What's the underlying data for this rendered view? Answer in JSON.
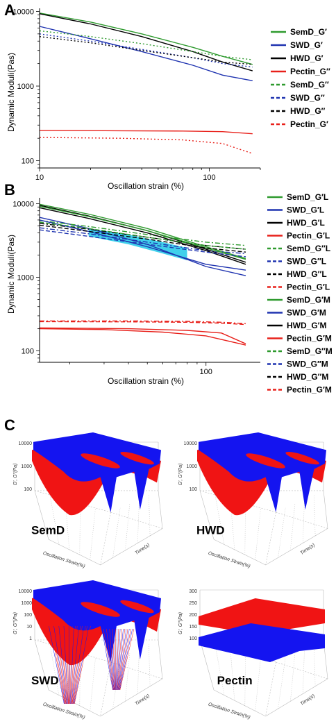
{
  "chart_data": [
    {
      "panel": "A",
      "type": "line",
      "xscale": "log",
      "yscale": "log",
      "xlim": [
        10,
        200
      ],
      "ylim": [
        80,
        11000
      ],
      "xticks": [
        "10",
        "100"
      ],
      "yticks": [
        "100",
        "1000",
        "10000"
      ],
      "xlabel": "Oscillation strain (%)",
      "ylabel": "Dynamic Moduli(Pas)",
      "legend_position": "right",
      "series": [
        {
          "name": "SemD_G′",
          "color": "#2e9a2e",
          "dash": "solid",
          "x": [
            10,
            20,
            40,
            80,
            120,
            180
          ],
          "y": [
            9500,
            7200,
            5000,
            3300,
            2500,
            1950
          ]
        },
        {
          "name": "SWD_G′",
          "color": "#1f33b0",
          "dash": "solid",
          "x": [
            10,
            20,
            40,
            80,
            120,
            180
          ],
          "y": [
            6300,
            4300,
            2900,
            1900,
            1400,
            1180
          ]
        },
        {
          "name": "HWD_G′",
          "color": "#000000",
          "dash": "solid",
          "x": [
            10,
            20,
            40,
            80,
            120,
            180
          ],
          "y": [
            9300,
            6800,
            4600,
            2900,
            2100,
            1600
          ]
        },
        {
          "name": "Pectin_G″",
          "color": "#e8201a",
          "dash": "solid",
          "x": [
            10,
            30,
            70,
            120,
            180
          ],
          "y": [
            255,
            252,
            250,
            245,
            230
          ]
        },
        {
          "name": "SemD_G″",
          "color": "#2e9a2e",
          "dash": "dot",
          "x": [
            10,
            20,
            40,
            80,
            120,
            180
          ],
          "y": [
            5500,
            4600,
            3700,
            2900,
            2500,
            2250
          ]
        },
        {
          "name": "SWD_G″",
          "color": "#1f33b0",
          "dash": "dot",
          "x": [
            10,
            20,
            40,
            80,
            120,
            180
          ],
          "y": [
            5000,
            4000,
            3100,
            2400,
            2000,
            1800
          ]
        },
        {
          "name": "HWD_G″",
          "color": "#000000",
          "dash": "dot",
          "x": [
            10,
            20,
            40,
            80,
            120,
            180
          ],
          "y": [
            4600,
            3800,
            3000,
            2400,
            2100,
            1950
          ]
        },
        {
          "name": "Pectin_G′",
          "color": "#e8201a",
          "dash": "dot",
          "x": [
            10,
            30,
            70,
            120,
            180
          ],
          "y": [
            205,
            200,
            190,
            170,
            125
          ]
        }
      ]
    },
    {
      "panel": "B",
      "type": "line",
      "xscale": "log",
      "yscale": "log",
      "xlim": [
        14,
        190
      ],
      "ylim": [
        70,
        12000
      ],
      "xticks": [
        "100"
      ],
      "yticks": [
        "100",
        "1000",
        "10000"
      ],
      "xlabel": "Oscillation strain (%)",
      "ylabel": "Dynamic Moduli(Pas)",
      "legend_position": "right",
      "shaded_band": {
        "color": "#1ec8e8",
        "x": [
          25,
          40,
          60,
          80
        ],
        "y_low": [
          3600,
          2800,
          2100,
          1700
        ],
        "y_high": [
          4600,
          3800,
          3000,
          2500
        ]
      },
      "series": [
        {
          "name": "SemD_G′L",
          "color": "#2e9a2e",
          "dash": "solid",
          "x": [
            14,
            25,
            50,
            100,
            160
          ],
          "y": [
            9800,
            7200,
            4600,
            2600,
            1800
          ]
        },
        {
          "name": "SWD_G′L",
          "color": "#1f33b0",
          "dash": "solid",
          "x": [
            14,
            25,
            50,
            100,
            160
          ],
          "y": [
            6500,
            4600,
            2800,
            1400,
            1050
          ]
        },
        {
          "name": "HWD_G′L",
          "color": "#000000",
          "dash": "solid",
          "x": [
            14,
            25,
            50,
            100,
            160
          ],
          "y": [
            9500,
            6800,
            4300,
            2400,
            1600
          ]
        },
        {
          "name": "Pectin_G′L",
          "color": "#e8201a",
          "dash": "solid",
          "x": [
            14,
            30,
            60,
            100,
            160
          ],
          "y": [
            200,
            195,
            180,
            160,
            120
          ]
        },
        {
          "name": "SemD_G″L",
          "color": "#2e9a2e",
          "dash": "dashdot",
          "x": [
            14,
            25,
            50,
            100,
            160
          ],
          "y": [
            5900,
            4900,
            3800,
            3000,
            2700
          ]
        },
        {
          "name": "SWD_G″L",
          "color": "#1f33b0",
          "dash": "dashdot",
          "x": [
            14,
            25,
            50,
            100,
            160
          ],
          "y": [
            4700,
            3900,
            3000,
            2300,
            2100
          ]
        },
        {
          "name": "HWD_G″L",
          "color": "#000000",
          "dash": "dashdot",
          "x": [
            14,
            25,
            50,
            100,
            160
          ],
          "y": [
            5400,
            4500,
            3500,
            2700,
            2400
          ]
        },
        {
          "name": "Pectin_G′L",
          "color": "#e8201a",
          "dash": "dashdot",
          "x": [
            14,
            40,
            80,
            120,
            160
          ],
          "y": [
            255,
            255,
            252,
            245,
            235
          ]
        },
        {
          "name": "SemD_G′M",
          "color": "#2e9a2e",
          "dash": "solid",
          "x": [
            14,
            25,
            50,
            100,
            160
          ],
          "y": [
            9200,
            6700,
            4300,
            2500,
            1750
          ]
        },
        {
          "name": "SWD_G′M",
          "color": "#1f33b0",
          "dash": "solid",
          "x": [
            14,
            25,
            50,
            100,
            160
          ],
          "y": [
            6000,
            4200,
            2600,
            1500,
            1250
          ]
        },
        {
          "name": "HWD_G′M",
          "color": "#000000",
          "dash": "solid",
          "x": [
            14,
            25,
            50,
            100,
            160
          ],
          "y": [
            8800,
            6300,
            4000,
            2300,
            1500
          ]
        },
        {
          "name": "Pectin_G′M",
          "color": "#e8201a",
          "dash": "solid",
          "x": [
            14,
            40,
            80,
            120,
            160
          ],
          "y": [
            205,
            200,
            190,
            175,
            125
          ]
        },
        {
          "name": "SemD_G″M",
          "color": "#2e9a2e",
          "dash": "dash",
          "x": [
            14,
            25,
            50,
            100,
            160
          ],
          "y": [
            5600,
            4600,
            3500,
            2700,
            2400
          ]
        },
        {
          "name": "SWD_G″M",
          "color": "#1f33b0",
          "dash": "dash",
          "x": [
            14,
            25,
            50,
            100,
            160
          ],
          "y": [
            4400,
            3600,
            2800,
            2200,
            1900
          ]
        },
        {
          "name": "HWD_G″M",
          "color": "#000000",
          "dash": "dash",
          "x": [
            14,
            25,
            50,
            100,
            160
          ],
          "y": [
            5100,
            4200,
            3300,
            2500,
            2200
          ]
        },
        {
          "name": "Pectin_G′M",
          "color": "#e8201a",
          "dash": "dash",
          "x": [
            14,
            40,
            80,
            120,
            160
          ],
          "y": [
            250,
            248,
            245,
            238,
            228
          ]
        }
      ]
    },
    {
      "panel": "C",
      "type": "surface3d",
      "xlabel": "Oscillation Strain(%)",
      "ylabel": "Time(s)",
      "zlabel": "G′, G″(Pa)",
      "surface_colors": [
        "#1414f0",
        "#f01414"
      ],
      "subplots": [
        {
          "name": "SemD",
          "zticks": [
            "10000",
            "1000",
            "100"
          ]
        },
        {
          "name": "HWD",
          "zticks": [
            "10000",
            "1000",
            "100"
          ]
        },
        {
          "name": "SWD",
          "zticks": [
            "10000",
            "1000",
            "100",
            "10",
            "1"
          ]
        },
        {
          "name": "Pectin",
          "zticks": [
            "300",
            "250",
            "200",
            "150",
            "100"
          ]
        }
      ]
    }
  ],
  "labels": {
    "A": "A",
    "B": "B",
    "C": "C"
  }
}
